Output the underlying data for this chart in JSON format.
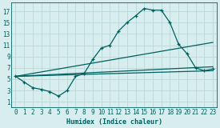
{
  "xlabel": "Humidex (Indice chaleur)",
  "bg_color": "#d8eeee",
  "grid_color": "#b8d8d8",
  "line_color": "#006060",
  "xlim": [
    -0.5,
    23.5
  ],
  "ylim": [
    0,
    18.5
  ],
  "xticks": [
    0,
    1,
    2,
    3,
    4,
    5,
    6,
    7,
    8,
    9,
    10,
    11,
    12,
    13,
    14,
    15,
    16,
    17,
    18,
    19,
    20,
    21,
    22,
    23
  ],
  "yticks": [
    1,
    3,
    5,
    7,
    9,
    11,
    13,
    15,
    17
  ],
  "curve1_x": [
    0,
    1,
    2,
    3,
    4,
    5,
    6,
    7,
    8,
    9,
    10,
    11,
    12,
    13,
    14,
    15,
    16,
    17,
    18,
    19,
    20,
    21,
    22,
    23
  ],
  "curve1_y": [
    5.5,
    4.5,
    3.5,
    3.2,
    2.8,
    2.0,
    3.0,
    5.5,
    6.0,
    8.5,
    10.5,
    11.0,
    13.5,
    15.0,
    16.2,
    17.5,
    17.2,
    17.2,
    15.0,
    11.2,
    9.5,
    7.0,
    6.5,
    6.8
  ],
  "line1_x": [
    0,
    23
  ],
  "line1_y": [
    5.5,
    11.5
  ],
  "line2_x": [
    0,
    23
  ],
  "line2_y": [
    5.5,
    7.2
  ],
  "line3_x": [
    0,
    23
  ],
  "line3_y": [
    5.5,
    6.5
  ]
}
